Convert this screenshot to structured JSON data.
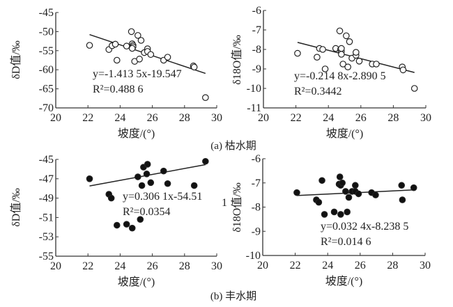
{
  "chart_data": [
    {
      "type": "scatter",
      "panel": "a",
      "marker": "open-circle",
      "xlabel": "坡度/(°)",
      "ylabel": "δD值/‰",
      "ylabel_parts": [
        "δ",
        "D",
        "值/‰"
      ],
      "xlim": [
        20,
        30
      ],
      "ylim": [
        -70,
        -45
      ],
      "xticks": [
        20,
        22,
        24,
        26,
        28,
        30
      ],
      "yticks": [
        -45,
        -50,
        -55,
        -60,
        -65,
        -70
      ],
      "equation": "y=-1.413 5x-19.547",
      "r2": "R²=0.488 6",
      "fit": {
        "slope": -1.4135,
        "intercept": -19.547,
        "x_range": [
          22.1,
          29.3
        ]
      },
      "points": [
        [
          22.1,
          -53.6
        ],
        [
          23.3,
          -54.7
        ],
        [
          23.5,
          -53.7
        ],
        [
          23.7,
          -53.3
        ],
        [
          23.8,
          -57.5
        ],
        [
          24.4,
          -53.8
        ],
        [
          24.7,
          -50
        ],
        [
          24.75,
          -53.2
        ],
        [
          24.8,
          -53.6
        ],
        [
          24.8,
          -54
        ],
        [
          24.75,
          -54.4
        ],
        [
          24.9,
          -57.8
        ],
        [
          25.1,
          -51
        ],
        [
          25.2,
          -57.2
        ],
        [
          25.3,
          -52.3
        ],
        [
          25.5,
          -55.5
        ],
        [
          25.7,
          -54.5
        ],
        [
          25.7,
          -55.2
        ],
        [
          25.9,
          -56
        ],
        [
          26.7,
          -57.5
        ],
        [
          26.95,
          -56.7
        ],
        [
          28.55,
          -59
        ],
        [
          28.6,
          -59.3
        ],
        [
          29.3,
          -67.3
        ]
      ]
    },
    {
      "type": "scatter",
      "panel": "a",
      "marker": "open-circle",
      "xlabel": "坡度/(°)",
      "ylabel": "δ18O值/‰",
      "ylabel_parts": [
        "δ",
        "18",
        "O值/‰"
      ],
      "xlim": [
        20,
        30
      ],
      "ylim": [
        -11,
        -6
      ],
      "xticks": [
        20,
        22,
        24,
        26,
        28,
        30
      ],
      "yticks": [
        -6,
        -7,
        -8,
        -9,
        -10,
        -11
      ],
      "equation": "y=-0.214 8x-2.890 5",
      "r2": "R²=0.3442",
      "fit": {
        "slope": -0.2148,
        "intercept": -2.8905,
        "x_range": [
          22.1,
          29.3
        ]
      },
      "points": [
        [
          22.1,
          -8.2
        ],
        [
          23.3,
          -8.4
        ],
        [
          23.45,
          -7.95
        ],
        [
          23.65,
          -8
        ],
        [
          23.8,
          -9
        ],
        [
          24.45,
          -7.95
        ],
        [
          24.7,
          -7.05
        ],
        [
          24.75,
          -8
        ],
        [
          24.8,
          -8.1
        ],
        [
          24.8,
          -8.25
        ],
        [
          24.8,
          -7.95
        ],
        [
          24.9,
          -8.75
        ],
        [
          25.1,
          -7.3
        ],
        [
          25.2,
          -8.9
        ],
        [
          25.3,
          -7.6
        ],
        [
          25.45,
          -8.45
        ],
        [
          25.7,
          -8.3
        ],
        [
          25.7,
          -8.15
        ],
        [
          25.9,
          -8.6
        ],
        [
          26.7,
          -8.75
        ],
        [
          26.95,
          -8.75
        ],
        [
          28.55,
          -8.9
        ],
        [
          28.6,
          -9.05
        ],
        [
          29.3,
          -10
        ]
      ]
    },
    {
      "type": "scatter",
      "panel": "b",
      "marker": "filled-circle",
      "xlabel": "坡度/(°)",
      "ylabel": "δD值/‰",
      "ylabel_parts": [
        "δ",
        "D",
        "值/‰"
      ],
      "xlim": [
        20,
        30
      ],
      "ylim": [
        -55,
        -45
      ],
      "xticks": [
        20,
        22,
        24,
        26,
        28,
        30
      ],
      "yticks": [
        -45,
        -47,
        -49,
        -51,
        -53,
        -55
      ],
      "equation": "y=0.306 1x-54.51",
      "r2": "R²=0.0354",
      "annotation": "1",
      "fit": {
        "slope": 0.3061,
        "intercept": -54.51,
        "x_range": [
          22.1,
          29.3
        ]
      },
      "points": [
        [
          22.1,
          -47
        ],
        [
          23.3,
          -48.6
        ],
        [
          23.45,
          -49
        ],
        [
          23.8,
          -51.8
        ],
        [
          24.4,
          -51.7
        ],
        [
          24.75,
          -52.1
        ],
        [
          25.1,
          -46.8
        ],
        [
          25.25,
          -51.2
        ],
        [
          25.35,
          -47.7
        ],
        [
          25.45,
          -45.8
        ],
        [
          25.65,
          -46.5
        ],
        [
          25.7,
          -45.5
        ],
        [
          25.9,
          -47.4
        ],
        [
          26.7,
          -46.2
        ],
        [
          26.95,
          -47.5
        ],
        [
          28.6,
          -47.7
        ],
        [
          29.3,
          -45.2
        ]
      ]
    },
    {
      "type": "scatter",
      "panel": "b",
      "marker": "filled-circle",
      "xlabel": "坡度/(°)",
      "ylabel": "δ18O值/‰",
      "ylabel_parts": [
        "δ",
        "18",
        "O值/‰"
      ],
      "xlim": [
        20,
        30
      ],
      "ylim": [
        -10,
        -6
      ],
      "xticks": [
        20,
        22,
        24,
        26,
        28,
        30
      ],
      "yticks": [
        -6,
        -7,
        -8,
        -9,
        -10
      ],
      "equation": "y=0.032 4x-8.238 5",
      "r2": "R²=0.014 6",
      "fit": {
        "slope": 0.0324,
        "intercept": -8.2385,
        "x_range": [
          22.1,
          29.3
        ]
      },
      "points": [
        [
          22.1,
          -7.4
        ],
        [
          23.3,
          -7.7
        ],
        [
          23.45,
          -7.8
        ],
        [
          23.65,
          -6.9
        ],
        [
          23.8,
          -8.3
        ],
        [
          24.4,
          -8.2
        ],
        [
          24.7,
          -7.05
        ],
        [
          24.75,
          -6.75
        ],
        [
          24.8,
          -8.3
        ],
        [
          24.8,
          -7.1
        ],
        [
          24.9,
          -7.0
        ],
        [
          25.1,
          -7.35
        ],
        [
          25.2,
          -8.2
        ],
        [
          25.3,
          -7.6
        ],
        [
          25.5,
          -7.35
        ],
        [
          25.7,
          -7.35
        ],
        [
          25.7,
          -7.1
        ],
        [
          25.9,
          -7.45
        ],
        [
          26.7,
          -7.4
        ],
        [
          26.95,
          -7.5
        ],
        [
          28.55,
          -7.1
        ],
        [
          28.6,
          -7.7
        ],
        [
          29.3,
          -7.2
        ]
      ]
    }
  ],
  "captions": {
    "a": "(a) 枯水期",
    "b": "(b) 丰水期"
  }
}
